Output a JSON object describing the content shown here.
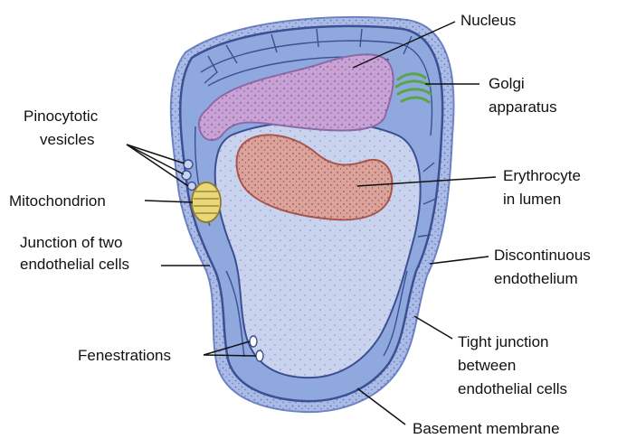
{
  "labels": {
    "nucleus": [
      "Nucleus"
    ],
    "golgi": [
      "Golgi",
      "apparatus"
    ],
    "pinocytotic": [
      "Pinocytotic",
      "vesicles"
    ],
    "mitochondrion": [
      "Mitochondrion"
    ],
    "erythrocyte": [
      "Erythrocyte",
      "in lumen"
    ],
    "junction": [
      "Junction of two",
      "endothelial cells"
    ],
    "discontinuous": [
      "Discontinuous",
      "endothelium"
    ],
    "fenestrations": [
      "Fenestrations"
    ],
    "tight_junction": [
      "Tight junction",
      "between",
      "endothelial cells"
    ],
    "basement": [
      "Basement membrane"
    ]
  },
  "colors": {
    "cytoplasm": "#8fa9df",
    "lumen": "#c9d3ee",
    "membrane": "#3d4f93",
    "nucleus": "#c9a2d6",
    "nucleus_stroke": "#8c6aa8",
    "erythrocyte": "#d9a49c",
    "erythrocyte_stroke": "#a9574e",
    "golgi": "#5aa546",
    "mitochondrion": "#e9d87a",
    "leader": "#111111"
  }
}
